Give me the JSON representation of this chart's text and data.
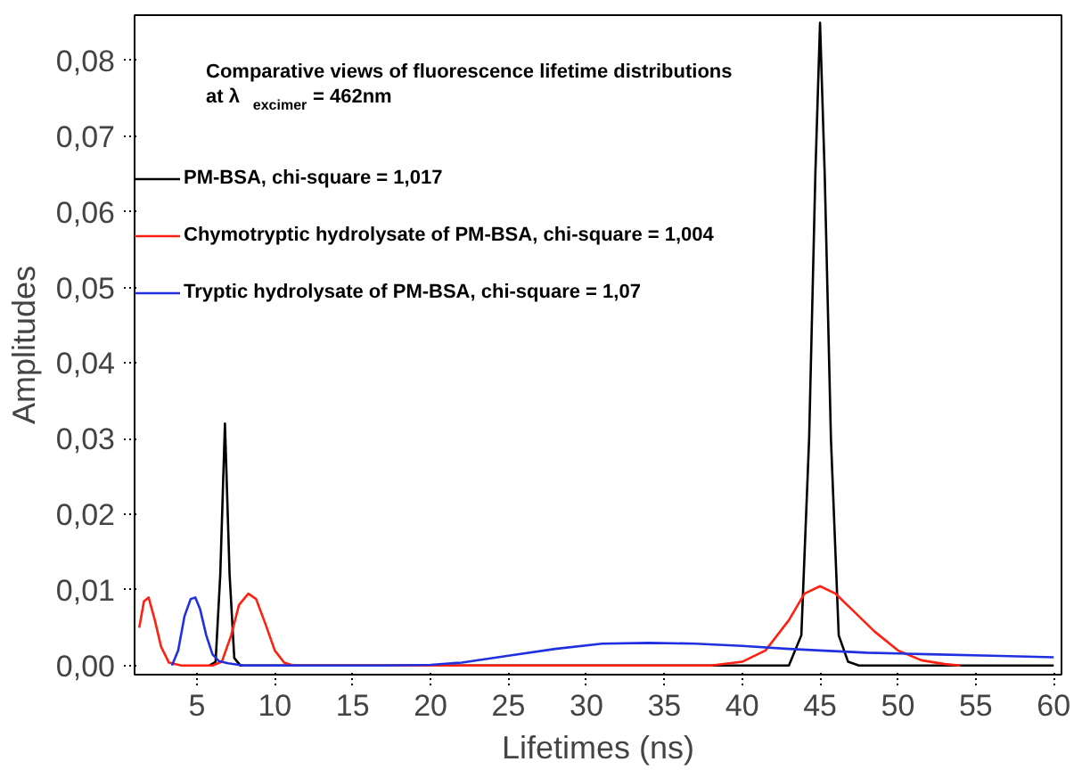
{
  "chart_data": {
    "type": "line",
    "title": "Comparative views of fluorescence lifetime distributions",
    "subtitle": "at λ$_{excimer}$= 462nm",
    "xlabel": "Lifetimes (ns)",
    "ylabel": "Amplitudes",
    "xlim": [
      1,
      60.5
    ],
    "ylim": [
      -0.0012,
      0.086
    ],
    "xticks": [
      5,
      10,
      15,
      20,
      25,
      30,
      35,
      40,
      45,
      50,
      55,
      60
    ],
    "yticks": [
      {
        "value": 0,
        "label": "0,00"
      },
      {
        "value": 0.01,
        "label": "0,01"
      },
      {
        "value": 0.02,
        "label": "0,02"
      },
      {
        "value": 0.03,
        "label": "0,03"
      },
      {
        "value": 0.04,
        "label": "0,04"
      },
      {
        "value": 0.05,
        "label": "0,05"
      },
      {
        "value": 0.06,
        "label": "0,06"
      },
      {
        "value": 0.07,
        "label": "0,07"
      },
      {
        "value": 0.08,
        "label": "0,08"
      }
    ],
    "grid": false,
    "legend": "top left",
    "marker": "none",
    "line_style": "solid",
    "series": [
      {
        "name": "PM-BSA, chi-square = 1,017",
        "color": "#000000",
        "x": [
          5.8,
          6.2,
          6.5,
          6.8,
          7.1,
          7.4,
          7.8,
          10,
          20,
          30,
          40,
          43,
          43.8,
          44.3,
          44.7,
          45,
          45.3,
          45.7,
          46.2,
          46.8,
          47.5,
          60
        ],
        "values": [
          0,
          0.0005,
          0.012,
          0.032,
          0.012,
          0.001,
          0,
          0,
          0,
          0,
          0,
          0,
          0.004,
          0.03,
          0.065,
          0.085,
          0.065,
          0.03,
          0.004,
          0.0005,
          0,
          0
        ]
      },
      {
        "name": "Chymotryptic hydrolysate of PM-BSA, chi-square = 1,004",
        "color": "#ff2010",
        "x": [
          1.3,
          1.6,
          1.9,
          2.3,
          2.7,
          3.2,
          4,
          5,
          6,
          6.6,
          7.2,
          7.7,
          8.3,
          8.8,
          9.4,
          10,
          10.6,
          11.2,
          38,
          40,
          41.5,
          43,
          44,
          45,
          46,
          47,
          48.5,
          50,
          51.5,
          53,
          54
        ],
        "values": [
          0.005,
          0.0085,
          0.009,
          0.006,
          0.0025,
          0.0004,
          0,
          0,
          0,
          0.0005,
          0.004,
          0.008,
          0.0095,
          0.0088,
          0.0055,
          0.002,
          0.0004,
          0,
          0,
          0.0005,
          0.002,
          0.006,
          0.0095,
          0.0105,
          0.0095,
          0.0075,
          0.0045,
          0.002,
          0.0007,
          0.0002,
          0
        ]
      },
      {
        "name": "Tryptic hydrolysate of PM-BSA, chi-square = 1,07",
        "color": "#2030e0",
        "x": [
          3.4,
          3.8,
          4.2,
          4.6,
          4.9,
          5.2,
          5.6,
          6,
          6.4,
          7,
          8,
          10,
          17,
          20,
          22,
          25,
          28,
          31,
          34,
          37,
          40,
          43,
          45,
          48,
          52,
          56,
          60
        ],
        "values": [
          0,
          0.002,
          0.0065,
          0.0088,
          0.009,
          0.0075,
          0.004,
          0.0015,
          0.0006,
          0.0003,
          0,
          0,
          0,
          0.0001,
          0.0004,
          0.0013,
          0.0022,
          0.0029,
          0.003,
          0.0029,
          0.0026,
          0.0022,
          0.002,
          0.0017,
          0.0015,
          0.0013,
          0.0011
        ]
      }
    ]
  }
}
